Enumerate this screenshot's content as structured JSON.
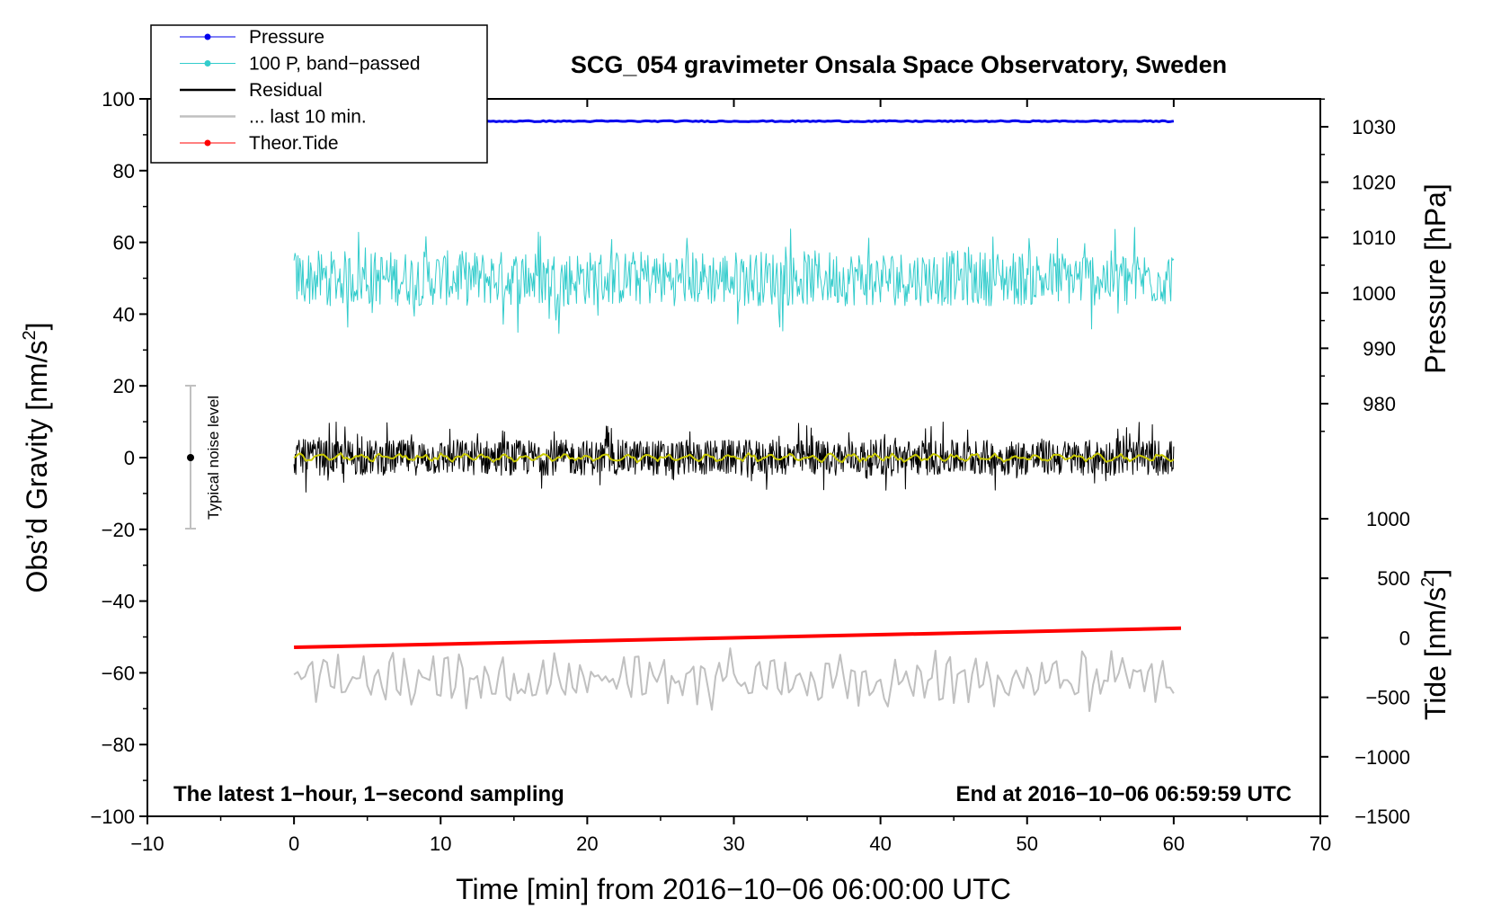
{
  "chart_data": {
    "type": "line",
    "title": "SCG_054 gravimeter Onsala Space Observatory, Sweden",
    "xlabel": "Time [min] from 2016−10−06 06:00:00 UTC",
    "ylabel_left": "Obs’d Gravity [nm/s",
    "ylabel_left_sup": "2",
    "ylabel_left_end": "]",
    "ylabel_pressure": "Pressure [hPa]",
    "ylabel_tide": "Tide [nm/s",
    "ylabel_tide_sup": "2",
    "ylabel_tide_end": "]",
    "xlim": [
      -10,
      70
    ],
    "ylim_left": [
      -100,
      100
    ],
    "pressure_lim": [
      975,
      1035
    ],
    "tide_lim": [
      -1500,
      1500
    ],
    "x_ticks": [
      -10,
      0,
      10,
      20,
      30,
      40,
      50,
      60,
      70
    ],
    "x_tick_labels": [
      "−10",
      "0",
      "10",
      "20",
      "30",
      "40",
      "50",
      "60",
      "70"
    ],
    "y_ticks_left": [
      100,
      80,
      60,
      40,
      20,
      0,
      -20,
      -40,
      -60,
      -80,
      -100
    ],
    "y_tick_labels_left": [
      "100",
      "80",
      "60",
      "40",
      "20",
      "0",
      "−20",
      "−40",
      "−60",
      "−80",
      "−100"
    ],
    "pressure_ticks": [
      1030,
      1020,
      1010,
      1000,
      990,
      980
    ],
    "pressure_tick_labels": [
      "1030",
      "1020",
      "1010",
      "1000",
      "990",
      "980"
    ],
    "tide_ticks": [
      1000,
      500,
      0,
      -500,
      -1000,
      -1500
    ],
    "tide_tick_labels": [
      "1000",
      "500",
      "0",
      "−500",
      "−1000",
      "−1500"
    ],
    "series": [
      {
        "name": "Pressure",
        "axis": "pressure",
        "color": "#0000ee",
        "x": [
          0,
          60
        ],
        "values": [
          1031.0,
          1031.0
        ],
        "noise": 0.2
      },
      {
        "name": "100 P, band−passed",
        "axis": "left",
        "color": "#33cccc",
        "x": [
          0,
          60
        ],
        "center": 50,
        "amplitude": 14
      },
      {
        "name": "Residual",
        "axis": "left",
        "color": "#000000",
        "x": [
          0,
          60
        ],
        "center": 0,
        "amplitude": 9
      },
      {
        "name": "... last 10 min.",
        "axis": "left",
        "color": "#c0c0c0",
        "x": [
          0,
          60
        ],
        "center": -62,
        "amplitude": 7
      },
      {
        "name": "Theor.Tide",
        "axis": "tide",
        "color": "#ff0000",
        "x": [
          0,
          60.5
        ],
        "values": [
          -80,
          80
        ]
      },
      {
        "name": "smoothed residual",
        "axis": "left",
        "color": "#c8c800",
        "x": [
          0,
          60
        ],
        "center": 0,
        "amplitude": 1.2
      }
    ],
    "legend": [
      {
        "label": "Pressure",
        "color": "#0000ee",
        "marker": true
      },
      {
        "label": "100 P, band−passed",
        "color": "#33cccc",
        "marker": true
      },
      {
        "label": "Residual",
        "color": "#000000",
        "marker": false
      },
      {
        "label": "... last 10 min.",
        "color": "#c0c0c0",
        "marker": false
      },
      {
        "label": "Theor.Tide",
        "color": "#ff0000",
        "marker": true
      }
    ],
    "legend_position": "top-left",
    "noise_bar": {
      "label": "Typical noise level",
      "x": -7,
      "center": 0,
      "low": -20,
      "high": 20
    },
    "annotation_left": "The latest 1−hour, 1−second sampling",
    "annotation_right": "End at 2016−10−06 06:59:59 UTC"
  }
}
